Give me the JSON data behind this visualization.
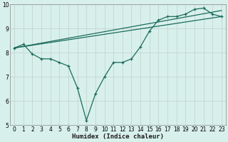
{
  "xlabel": "Humidex (Indice chaleur)",
  "xlim": [
    -0.5,
    23.5
  ],
  "ylim": [
    5,
    10
  ],
  "yticks": [
    5,
    6,
    7,
    8,
    9,
    10
  ],
  "xticks": [
    0,
    1,
    2,
    3,
    4,
    5,
    6,
    7,
    8,
    9,
    10,
    11,
    12,
    13,
    14,
    15,
    16,
    17,
    18,
    19,
    20,
    21,
    22,
    23
  ],
  "background_color": "#d8f0ec",
  "grid_color": "#c0cfc8",
  "line_color": "#1a6b5a",
  "line1_x": [
    0,
    1,
    2,
    3,
    4,
    5,
    6,
    7,
    8,
    9,
    10,
    11,
    12,
    13,
    14,
    15,
    16,
    17,
    18,
    19,
    20,
    21,
    22,
    23
  ],
  "line1_y": [
    8.2,
    8.35,
    7.95,
    7.75,
    7.75,
    7.6,
    7.45,
    6.55,
    5.2,
    6.3,
    7.0,
    7.6,
    7.6,
    7.75,
    8.25,
    8.9,
    9.35,
    9.5,
    9.5,
    9.6,
    9.8,
    9.85,
    9.6,
    9.5
  ],
  "line2_x": [
    0,
    23
  ],
  "line2_y": [
    8.2,
    9.5
  ],
  "line3_x": [
    0,
    23
  ],
  "line3_y": [
    8.2,
    9.75
  ]
}
